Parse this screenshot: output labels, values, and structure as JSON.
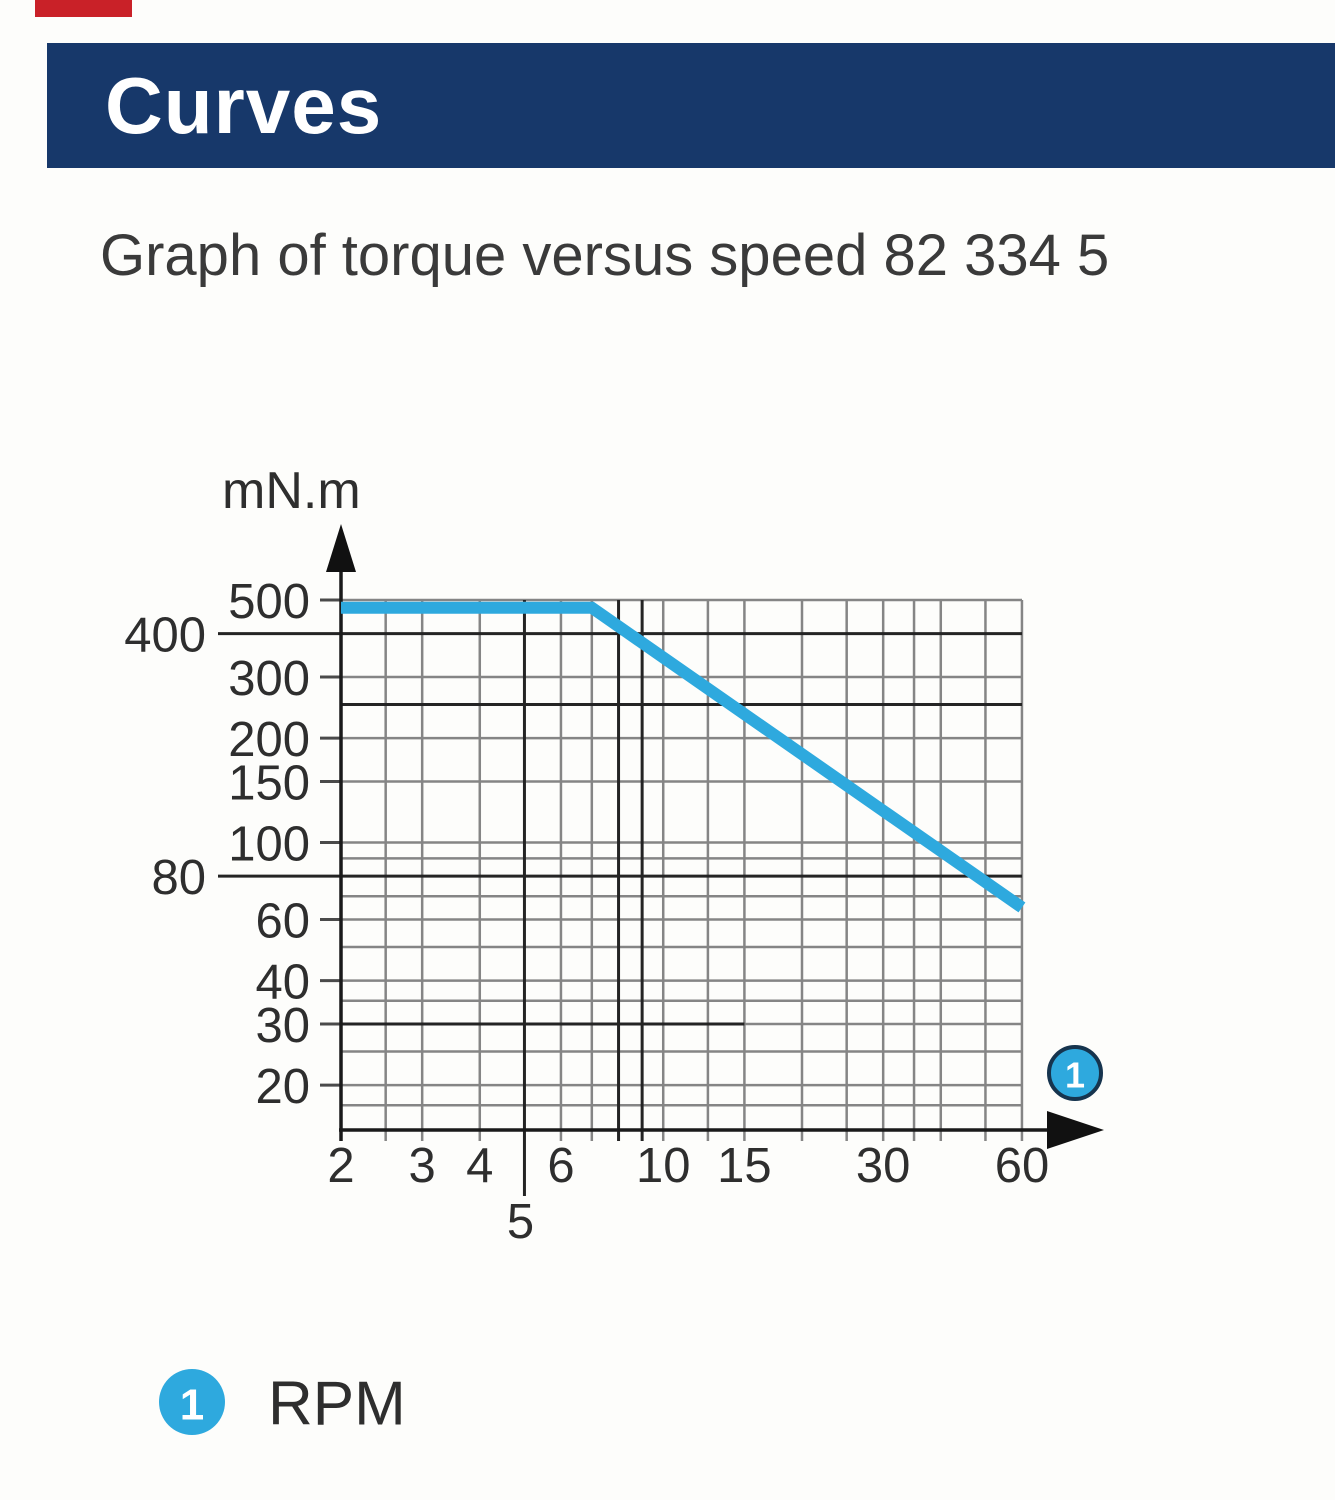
{
  "header": {
    "title": "Curves",
    "bar_color": "#17386a",
    "accent_color": "#c92128"
  },
  "subtitle": "Graph of torque versus speed 82 334 5",
  "chart_data": {
    "type": "line",
    "title": "Graph of torque versus speed 82 334 5",
    "x_scale": "log",
    "y_scale": "log",
    "ylabel": "mN.m",
    "x_unit": "RPM",
    "x_range": [
      2,
      60
    ],
    "y_range": [
      15,
      500
    ],
    "x_ticks": [
      2,
      3,
      4,
      5,
      6,
      10,
      15,
      30,
      60
    ],
    "x_tick_dropped": 5,
    "x_gridlines": [
      2,
      2.5,
      3,
      4,
      5,
      6,
      7,
      8,
      9,
      10,
      12.5,
      15,
      20,
      25,
      30,
      35,
      40,
      50,
      60
    ],
    "x_dark_gridlines": [
      5,
      8,
      9
    ],
    "y_ticks_main": [
      500,
      300,
      200,
      150,
      100,
      60,
      40,
      30,
      20
    ],
    "y_ticks_offset": [
      400,
      80
    ],
    "y_gridlines": [
      500,
      400,
      300,
      250,
      200,
      150,
      100,
      90,
      80,
      70,
      60,
      50,
      40,
      35,
      30,
      25,
      20,
      17.5
    ],
    "y_dark_gridlines": [
      400,
      250,
      80
    ],
    "y_dark_partial_gridline": {
      "value": 30,
      "to_x": 15
    },
    "series": [
      {
        "name": "torque-vs-speed",
        "color": "#2ea9de",
        "points": [
          [
            2,
            475
          ],
          [
            7,
            475
          ],
          [
            60,
            65
          ]
        ]
      }
    ],
    "curve_marker": {
      "text": "1",
      "fill": "#2ea9de",
      "ring": "#16344e"
    }
  },
  "legend": {
    "marker": "1",
    "label": "RPM",
    "marker_color": "#2ea9de"
  },
  "colors": {
    "grid_minor": "#858585",
    "grid_major": "#242424",
    "axis": "#1a1a1a",
    "text": "#2e2e2e"
  }
}
